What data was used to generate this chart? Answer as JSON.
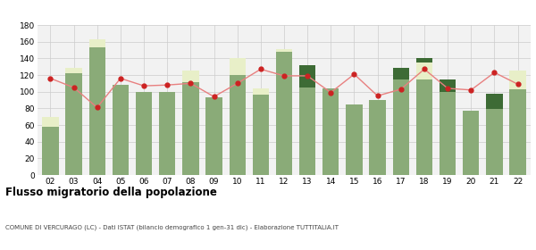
{
  "years": [
    "02",
    "03",
    "04",
    "05",
    "06",
    "07",
    "08",
    "09",
    "10",
    "11",
    "12",
    "13",
    "14",
    "15",
    "16",
    "17",
    "18",
    "19",
    "20",
    "21",
    "22"
  ],
  "iscritti_altri_comuni": [
    58,
    122,
    153,
    108,
    100,
    100,
    111,
    93,
    120,
    96,
    148,
    105,
    104,
    85,
    90,
    115,
    115,
    100,
    77,
    79,
    103
  ],
  "iscritti_estero": [
    12,
    7,
    10,
    0,
    0,
    0,
    14,
    0,
    20,
    8,
    3,
    0,
    0,
    0,
    0,
    0,
    20,
    0,
    0,
    0,
    22
  ],
  "iscritti_altri": [
    0,
    0,
    0,
    0,
    0,
    0,
    0,
    0,
    0,
    0,
    0,
    27,
    0,
    0,
    0,
    14,
    5,
    15,
    0,
    18,
    0
  ],
  "cancellati": [
    116,
    105,
    81,
    116,
    107,
    108,
    110,
    94,
    110,
    127,
    119,
    119,
    99,
    121,
    95,
    103,
    127,
    104,
    102,
    123,
    109
  ],
  "color_altri_comuni": "#8aab78",
  "color_estero": "#e8efc8",
  "color_altri": "#3d6b35",
  "color_cancellati": "#cc2222",
  "color_line": "#e88080",
  "bg_color": "#f2f2f2",
  "grid_color": "#cccccc",
  "title": "Flusso migratorio della popolazione",
  "subtitle": "COMUNE DI VERCURAGO (LC) - Dati ISTAT (bilancio demografico 1 gen-31 dic) - Elaborazione TUTTITALIA.IT",
  "ylim": [
    0,
    180
  ],
  "yticks": [
    0,
    20,
    40,
    60,
    80,
    100,
    120,
    140,
    160,
    180
  ]
}
